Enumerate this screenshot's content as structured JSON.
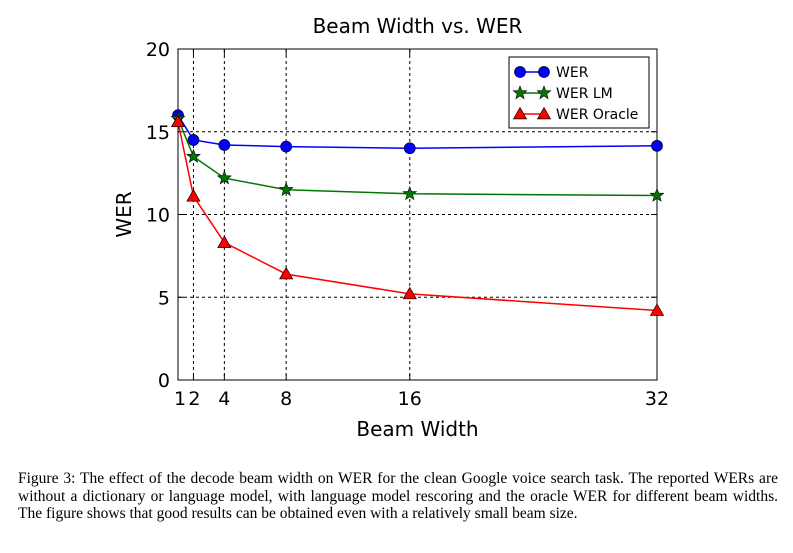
{
  "chart_data": {
    "type": "line",
    "title": "Beam Width vs. WER",
    "xlabel": "Beam Width",
    "ylabel": "WER",
    "xlim": [
      1,
      32
    ],
    "ylim": [
      0,
      20
    ],
    "xticks": [
      1,
      2,
      4,
      8,
      16,
      32
    ],
    "yticks": [
      0,
      5,
      10,
      15,
      20
    ],
    "grid": true,
    "legend_position": "top-right",
    "x": [
      1,
      2,
      4,
      8,
      16,
      32
    ],
    "series": [
      {
        "name": "WER",
        "color": "#0000ff",
        "marker": "circle",
        "values": [
          16.0,
          14.5,
          14.2,
          14.1,
          14.0,
          14.15
        ]
      },
      {
        "name": "WER LM",
        "color": "#007700",
        "marker": "star",
        "values": [
          15.8,
          13.5,
          12.2,
          11.5,
          11.25,
          11.15
        ]
      },
      {
        "name": "WER Oracle",
        "color": "#ff0000",
        "marker": "triangle",
        "values": [
          15.6,
          11.1,
          8.3,
          6.4,
          5.2,
          4.2
        ]
      }
    ]
  },
  "caption": {
    "label": "Figure 3:",
    "text": "The effect of the decode beam width on WER for the clean Google voice search task. The reported WERs are without a dictionary or language model, with language model rescoring and the oracle WER for different beam widths. The figure shows that good results can be obtained even with a relatively small beam size."
  }
}
